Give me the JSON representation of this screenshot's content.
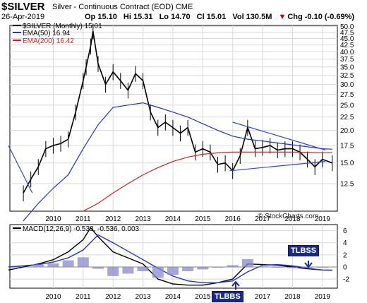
{
  "header": {
    "symbol": "$SILVER",
    "description": "Silver - Continuous Contract (EOD)",
    "exchange": "CME",
    "date": "26-Apr-2019",
    "open": "Op 15.10",
    "high": "Hi 15.31",
    "low": "Lo 14.70",
    "close": "Cl 15.01",
    "volume": "Vol 130.5M",
    "change": "Chg -0.10 (-0.69%)",
    "change_arrow": "▼"
  },
  "legend": {
    "price": "$SILVER (Monthly) 15.01",
    "ema50": "EMA(50) 16.94",
    "ema200": "EMA(200) 16.42",
    "macd": "MACD(12,26,9) -0.533, -0.536, 0.003"
  },
  "watermark": "© StockCharts.com",
  "annotations": {
    "tlbss": "TLBSS",
    "tlbbs": "TLBBS"
  },
  "colors": {
    "price": "#000000",
    "ema50": "#2233cc",
    "ema200": "#cc2222",
    "trendline": "#3344dd",
    "macd_hist": "#8888cc",
    "grid": "#d8d8d8"
  },
  "chart_data": [
    {
      "type": "line",
      "title": "$SILVER (Monthly) 15.01",
      "x_ticks": [
        "2010",
        "2011",
        "2012",
        "2013",
        "2014",
        "2015",
        "2016",
        "2017",
        "2018",
        "2019"
      ],
      "y_ticks": [
        12.5,
        15.0,
        17.5,
        20.0,
        22.5,
        25.0,
        27.5,
        30.0,
        32.5,
        35.0,
        37.5,
        40.0,
        42.5,
        45.0,
        47.5,
        50.0
      ],
      "ylim": [
        9.8,
        50.5
      ],
      "y_scale": "log",
      "series": [
        {
          "name": "$SILVER (Monthly)",
          "x": [
            2009.0,
            2009.25,
            2009.5,
            2009.75,
            2010.0,
            2010.25,
            2010.5,
            2010.75,
            2011.0,
            2011.1,
            2011.25,
            2011.33,
            2011.5,
            2011.75,
            2012.0,
            2012.25,
            2012.5,
            2012.75,
            2013.0,
            2013.25,
            2013.5,
            2013.75,
            2014.0,
            2014.25,
            2014.5,
            2014.75,
            2015.0,
            2015.25,
            2015.5,
            2015.75,
            2016.0,
            2016.25,
            2016.5,
            2016.75,
            2017.0,
            2017.25,
            2017.5,
            2017.75,
            2018.0,
            2018.25,
            2018.5,
            2018.75,
            2019.0,
            2019.33
          ],
          "values": [
            11.5,
            13.0,
            14.5,
            17.0,
            17.5,
            17.8,
            18.5,
            23.5,
            31.0,
            35.0,
            42.0,
            48.0,
            36.0,
            30.0,
            33.5,
            31.0,
            28.5,
            33.0,
            31.0,
            23.5,
            20.5,
            21.5,
            20.5,
            19.5,
            20.5,
            16.5,
            17.0,
            16.5,
            14.8,
            15.0,
            14.0,
            16.0,
            20.5,
            17.0,
            17.2,
            17.5,
            16.8,
            17.0,
            17.0,
            16.5,
            15.5,
            14.5,
            15.5,
            15.0
          ]
        },
        {
          "name": "EMA(50)",
          "x": [
            2009.0,
            2009.5,
            2010.0,
            2010.5,
            2011.0,
            2011.5,
            2012.0,
            2012.5,
            2013.0,
            2013.5,
            2014.0,
            2014.5,
            2015.0,
            2015.5,
            2016.0,
            2016.5,
            2017.0,
            2017.5,
            2018.0,
            2018.5,
            2019.0,
            2019.33
          ],
          "values": [
            9.0,
            10.5,
            12.0,
            13.5,
            17.0,
            21.0,
            24.5,
            25.0,
            25.5,
            24.5,
            23.5,
            22.5,
            21.2,
            20.0,
            19.0,
            18.5,
            18.2,
            17.9,
            17.6,
            17.3,
            17.0,
            16.94
          ]
        },
        {
          "name": "EMA(200)",
          "x": [
            2011.0,
            2011.5,
            2012.0,
            2012.5,
            2013.0,
            2013.5,
            2014.0,
            2014.5,
            2015.0,
            2015.5,
            2016.0,
            2016.5,
            2017.0,
            2017.5,
            2018.0,
            2018.5,
            2019.0,
            2019.33
          ],
          "values": [
            9.8,
            10.5,
            11.5,
            12.5,
            13.5,
            14.4,
            15.2,
            15.8,
            16.2,
            16.4,
            16.5,
            16.5,
            16.5,
            16.5,
            16.5,
            16.45,
            16.42,
            16.42
          ]
        }
      ],
      "trendlines": [
        {
          "x": [
            2016.0,
            2019.1
          ],
          "values": [
            21.5,
            16.8
          ]
        },
        {
          "x": [
            2015.9,
            2019.1
          ],
          "values": [
            14.0,
            15.2
          ]
        },
        {
          "x": [
            2008.5,
            2009.3
          ],
          "values": [
            17.5,
            11.5
          ]
        }
      ]
    },
    {
      "type": "bar",
      "title": "MACD(12,26,9) -0.533, -0.536, 0.003",
      "y_ticks": [
        6,
        4,
        2,
        0,
        -2
      ],
      "ylim": [
        -3.5,
        7
      ],
      "series": [
        {
          "name": "MACD",
          "x": [
            2008.5,
            2009.0,
            2009.5,
            2010.0,
            2010.5,
            2011.0,
            2011.25,
            2011.5,
            2012.0,
            2012.5,
            2013.0,
            2013.5,
            2014.0,
            2014.5,
            2015.0,
            2015.5,
            2016.0,
            2016.5,
            2017.0,
            2017.5,
            2018.0,
            2018.5,
            2019.0,
            2019.33
          ],
          "values": [
            -0.5,
            0.0,
            0.5,
            1.2,
            2.5,
            4.5,
            6.5,
            5.0,
            2.5,
            1.5,
            0.5,
            -2.0,
            -2.8,
            -3.0,
            -3.0,
            -2.6,
            -2.0,
            0.5,
            0.4,
            0.3,
            0.0,
            -0.3,
            -0.5,
            -0.533
          ]
        },
        {
          "name": "Signal",
          "x": [
            2008.5,
            2009.0,
            2009.5,
            2010.0,
            2010.5,
            2011.0,
            2011.5,
            2012.0,
            2012.5,
            2013.0,
            2013.5,
            2014.0,
            2014.5,
            2015.0,
            2015.5,
            2016.0,
            2016.5,
            2017.0,
            2017.5,
            2018.0,
            2018.5,
            2019.0,
            2019.33
          ],
          "values": [
            0.0,
            0.2,
            0.4,
            0.8,
            1.5,
            2.8,
            5.3,
            4.0,
            2.6,
            1.2,
            -0.2,
            -1.5,
            -2.3,
            -2.6,
            -2.6,
            -2.3,
            -0.8,
            0.3,
            0.4,
            0.2,
            -0.2,
            -0.5,
            -0.536
          ]
        },
        {
          "name": "Histogram",
          "x": [
            2009.5,
            2010.0,
            2010.5,
            2011.0,
            2011.5,
            2012.0,
            2012.5,
            2013.0,
            2013.5,
            2014.0,
            2014.5,
            2015.0,
            2015.5,
            2016.0,
            2016.5,
            2017.0,
            2017.5,
            2018.0,
            2018.5,
            2019.0
          ],
          "values": [
            0.4,
            0.6,
            1.1,
            1.6,
            -0.3,
            -1.5,
            -1.1,
            -0.7,
            -1.8,
            -1.3,
            -0.7,
            -0.4,
            0.0,
            0.3,
            1.3,
            0.1,
            -0.1,
            -0.2,
            -0.1,
            0.003
          ]
        }
      ]
    }
  ]
}
